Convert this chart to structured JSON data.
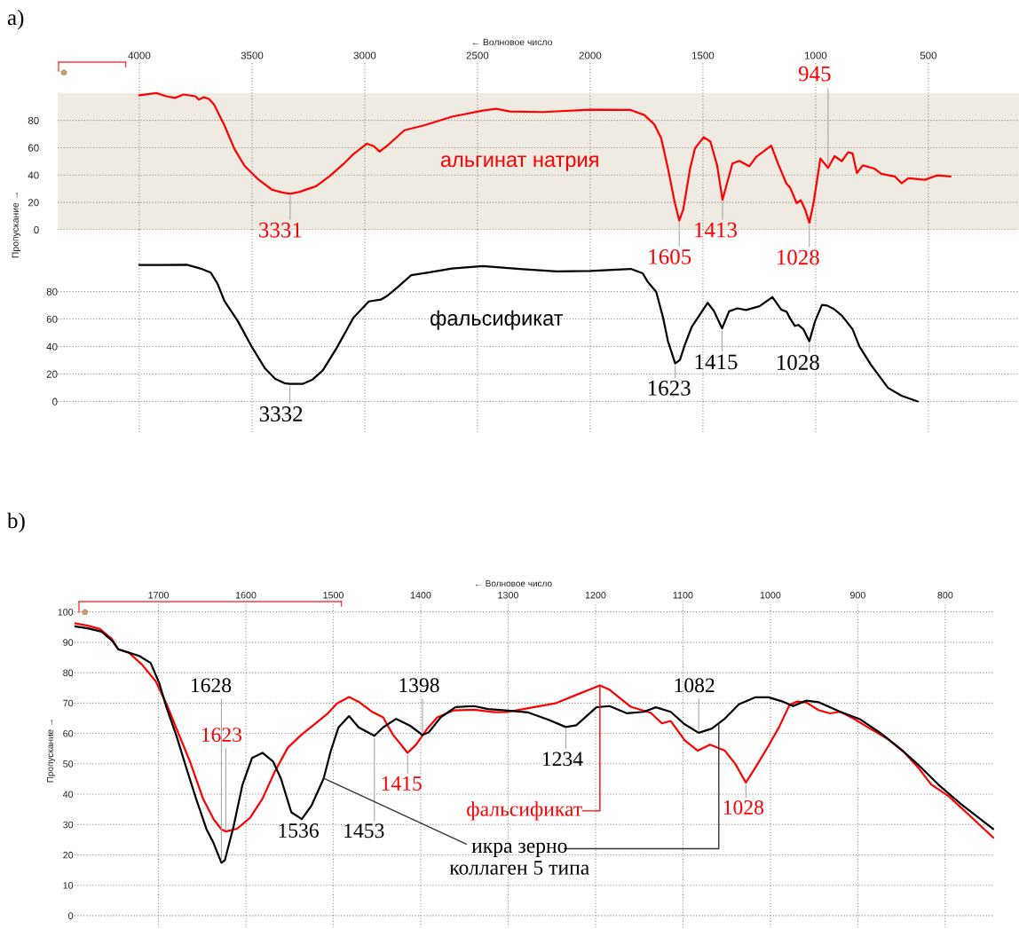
{
  "chart_data": [
    {
      "type": "line",
      "title": "a)",
      "xlabel": "← Волновое число",
      "ylabel": "Пропускание →",
      "xlim": [
        4362,
        98
      ],
      "xticks": [
        4000,
        3500,
        3000,
        2500,
        2000,
        1500,
        1000,
        500
      ],
      "ylim": [
        0,
        122.6
      ],
      "yticks": [
        0,
        20,
        40,
        60,
        80
      ],
      "grid": true,
      "bands": [
        {
          "axis": "y",
          "from": 0,
          "to": 100,
          "color": "#f0ebe2"
        }
      ],
      "series": [
        {
          "name": "альгинат натрия",
          "color": "#ff0000",
          "x": [
            4000,
            3925,
            3879,
            3842,
            3804,
            3751,
            3736,
            3713,
            3691,
            3668,
            3623,
            3578,
            3533,
            3472,
            3412,
            3367,
            3331,
            3291,
            3216,
            3155,
            3095,
            3050,
            2990,
            2960,
            2934,
            2899,
            2824,
            2733,
            2613,
            2477,
            2417,
            2356,
            2210,
            2000,
            1820,
            1760,
            1715,
            1685,
            1655,
            1625,
            1605,
            1587,
            1557,
            1535,
            1497,
            1467,
            1437,
            1413,
            1392,
            1369,
            1339,
            1294,
            1264,
            1197,
            1167,
            1129,
            1114,
            1084,
            1066,
            1047,
            1028,
            1009,
            979,
            945,
            916,
            884,
            856,
            836,
            817,
            791,
            739,
            709,
            649,
            619,
            589,
            515,
            462,
            402
          ],
          "values": [
            98.4,
            100,
            97.6,
            96.4,
            98.9,
            97.6,
            95.2,
            96.9,
            95.7,
            91.4,
            76.5,
            59.1,
            46.7,
            36.8,
            29.3,
            27.3,
            26.3,
            27.6,
            31.8,
            39.3,
            48,
            55.4,
            62.9,
            61.1,
            57.1,
            61.6,
            72.8,
            76.5,
            82.7,
            87.2,
            88.4,
            86.5,
            86.1,
            87.8,
            87.6,
            83.9,
            76.9,
            67,
            44.7,
            19.9,
            6.7,
            14.9,
            44.7,
            59.6,
            67.7,
            64.5,
            47.1,
            21.8,
            34.7,
            48.4,
            50.4,
            46.4,
            53.3,
            61.5,
            48.4,
            33.5,
            31,
            19.4,
            21.6,
            14.9,
            5,
            19.9,
            52.1,
            45.2,
            53.8,
            50.1,
            56.6,
            55.8,
            41.4,
            47.1,
            44.7,
            40.9,
            39,
            34,
            37.7,
            36.5,
            39.7,
            39
          ]
        }
      ],
      "annotations": [
        {
          "text": "3331",
          "x": 3331,
          "y": 26.3
        },
        {
          "text": "1605",
          "x": 1605,
          "y": 6.7
        },
        {
          "text": "1413",
          "x": 1413,
          "y": 21.8
        },
        {
          "text": "1028",
          "x": 1028,
          "y": 5
        },
        {
          "text": "945",
          "x": 945,
          "y": 45.2
        }
      ]
    },
    {
      "type": "line",
      "xlim": [
        4362,
        98
      ],
      "xticks": [
        4000,
        3500,
        3000,
        2500,
        2000,
        1500,
        1000,
        500
      ],
      "ylim": [
        -22.3,
        125
      ],
      "yticks": [
        0,
        20,
        40,
        60,
        80
      ],
      "tick_labels": "y",
      "grid": true,
      "series": [
        {
          "name": "фальсификат",
          "color": "#000000",
          "x": [
            4000,
            3894,
            3789,
            3729,
            3683,
            3653,
            3623,
            3563,
            3502,
            3442,
            3397,
            3352,
            3332,
            3276,
            3231,
            3186,
            3125,
            3050,
            2982,
            2929,
            2899,
            2854,
            2794,
            2718,
            2613,
            2477,
            2300,
            2150,
            2000,
            1820,
            1767,
            1745,
            1707,
            1677,
            1655,
            1623,
            1602,
            1580,
            1550,
            1512,
            1479,
            1452,
            1415,
            1384,
            1347,
            1309,
            1249,
            1192,
            1152,
            1129,
            1114,
            1092,
            1077,
            1054,
            1028,
            1002,
            972,
            949,
            919,
            883,
            836,
            806,
            754,
            679,
            619,
            547
          ],
          "values": [
            99.3,
            99.3,
            99.5,
            96.8,
            93.8,
            85.7,
            73.3,
            58.5,
            40,
            24,
            16.5,
            13.1,
            12.8,
            12.8,
            16,
            22.7,
            38.8,
            61,
            72.8,
            74.1,
            77,
            83.2,
            91.9,
            93.8,
            96.8,
            98.5,
            96.3,
            94.6,
            95,
            96.5,
            93.3,
            87.1,
            79.7,
            61.1,
            43.8,
            27.7,
            30.2,
            41.3,
            54.2,
            63.6,
            71.8,
            66.1,
            53.2,
            65.6,
            67.8,
            66.6,
            69.3,
            76,
            66.8,
            65.3,
            60.6,
            55,
            55.7,
            52.5,
            43.8,
            58.7,
            70.3,
            69.8,
            67.3,
            62.4,
            52.5,
            40.1,
            26.5,
            9.9,
            4.2,
            0
          ]
        }
      ],
      "annotations": [
        {
          "text": "3332",
          "x": 3332,
          "y": 12.8
        },
        {
          "text": "1623",
          "x": 1623,
          "y": 27.7
        },
        {
          "text": "1415",
          "x": 1415,
          "y": 53.2
        },
        {
          "text": "1028",
          "x": 1028,
          "y": 43.8
        }
      ]
    },
    {
      "type": "line",
      "title": "b)",
      "xlabel": "← Волновое число",
      "ylabel": "Пропускание →",
      "xlim": [
        1796,
        744
      ],
      "xticks": [
        1700,
        1600,
        1500,
        1400,
        1300,
        1200,
        1100,
        1000,
        900,
        800
      ],
      "ylim": [
        -4,
        103
      ],
      "yticks": [
        0,
        10,
        20,
        30,
        40,
        50,
        60,
        70,
        80,
        90,
        100
      ],
      "grid": true,
      "series": [
        {
          "name": "фальсификат",
          "color": "#ff0000",
          "x": [
            1796,
            1781,
            1767,
            1753,
            1746,
            1734,
            1719,
            1703,
            1691,
            1680,
            1664,
            1649,
            1637,
            1628,
            1623,
            1610,
            1595,
            1581,
            1567,
            1552,
            1536,
            1521,
            1507,
            1496,
            1482,
            1471,
            1455,
            1443,
            1432,
            1415,
            1405,
            1393,
            1381,
            1362,
            1339,
            1316,
            1300,
            1277,
            1246,
            1222,
            1195,
            1184,
            1160,
            1137,
            1124,
            1114,
            1098,
            1083,
            1069,
            1052,
            1040,
            1028,
            1017,
            1002,
            990,
            978,
            969,
            959,
            945,
            932,
            920,
            905,
            889,
            866,
            847,
            831,
            816,
            796,
            773,
            745
          ],
          "values": [
            96.3,
            95.5,
            94.4,
            91,
            87.7,
            86.6,
            82.7,
            77.1,
            69.8,
            62,
            50.8,
            38.5,
            31.8,
            28.4,
            27.7,
            28.6,
            32.3,
            38.5,
            47.4,
            55.3,
            59.7,
            63.1,
            66.4,
            69.8,
            72,
            70.4,
            67,
            65.3,
            59.7,
            53.6,
            56.4,
            61.4,
            65.3,
            67.6,
            67.8,
            67,
            67.1,
            68.3,
            69.9,
            72.7,
            75.8,
            74.4,
            68.8,
            66.8,
            63.3,
            64.1,
            57.7,
            54.3,
            56.3,
            54.3,
            49.9,
            43.8,
            48.8,
            56,
            62.1,
            69.4,
            70.5,
            70.2,
            67.7,
            66.6,
            67.1,
            64.9,
            62.1,
            58.2,
            53.8,
            48.8,
            43.2,
            39.3,
            33.2,
            25.7
          ]
        },
        {
          "name": "икра зерно\nколлаген 5 типа",
          "color": "#000000",
          "x": [
            1796,
            1781,
            1765,
            1753,
            1746,
            1736,
            1722,
            1709,
            1699,
            1691,
            1680,
            1668,
            1657,
            1645,
            1637,
            1628,
            1624,
            1614,
            1604,
            1593,
            1581,
            1569,
            1560,
            1548,
            1536,
            1525,
            1511,
            1503,
            1494,
            1482,
            1471,
            1453,
            1443,
            1428,
            1412,
            1398,
            1391,
            1377,
            1360,
            1339,
            1323,
            1300,
            1277,
            1255,
            1234,
            1222,
            1199,
            1184,
            1164,
            1145,
            1131,
            1114,
            1098,
            1082,
            1067,
            1052,
            1036,
            1017,
            1002,
            986,
            974,
            959,
            945,
            920,
            897,
            874,
            851,
            831,
            808,
            781,
            762,
            745
          ],
          "values": [
            95.3,
            94.6,
            93.5,
            90.5,
            87.7,
            86.8,
            85.5,
            83.2,
            76.5,
            68.7,
            59.7,
            48.5,
            38.5,
            28.4,
            23.9,
            17.4,
            18.3,
            29.5,
            43,
            51.9,
            53.6,
            50.8,
            45.2,
            34,
            31.8,
            36.2,
            45.2,
            54.1,
            62,
            65.7,
            62,
            59.2,
            62,
            64.8,
            62.5,
            59.5,
            60.3,
            65.3,
            68.7,
            69,
            68,
            67.5,
            66.9,
            64.6,
            62.1,
            62.7,
            68.6,
            69,
            66.6,
            67.1,
            68.6,
            67.1,
            63,
            60.2,
            61.6,
            64.9,
            69.6,
            71.9,
            71.9,
            70.5,
            69,
            70.8,
            70.3,
            67.1,
            64.6,
            60.1,
            54.9,
            49.7,
            43.2,
            36.5,
            32.3,
            28.5
          ]
        }
      ],
      "annotations": [
        {
          "text": "1628",
          "x": 1628,
          "y": 17.4
        },
        {
          "text": "1623",
          "x": 1623,
          "y": 27.7
        },
        {
          "text": "1536",
          "x": 1536,
          "y": 31.8
        },
        {
          "text": "1453",
          "x": 1453,
          "y": 59.2
        },
        {
          "text": "1415",
          "x": 1415,
          "y": 53.6
        },
        {
          "text": "1398",
          "x": 1398,
          "y": 59.5
        },
        {
          "text": "1234",
          "x": 1234,
          "y": 62.1
        },
        {
          "text": "1082",
          "x": 1082,
          "y": 60.2
        },
        {
          "text": "1028",
          "x": 1028,
          "y": 43.8
        }
      ]
    }
  ]
}
